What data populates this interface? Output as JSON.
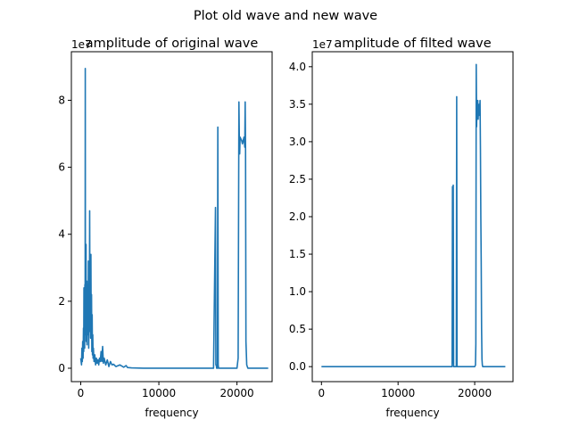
{
  "figure": {
    "suptitle": "Plot old wave and new wave"
  },
  "chart_data": [
    {
      "type": "line",
      "title": "amplitude of original wave",
      "xlabel": "frequency",
      "ylabel": "",
      "xlim": [
        -1200,
        24500
      ],
      "ylim": [
        -0.4,
        9.45
      ],
      "y_offset_text": "1e7",
      "xticks": [
        0,
        10000,
        20000
      ],
      "xtick_labels": [
        "0",
        "10000",
        "20000"
      ],
      "yticks": [
        0,
        2,
        4,
        6,
        8
      ],
      "ytick_labels": [
        "0",
        "2",
        "4",
        "6",
        "8"
      ],
      "grid": false,
      "legend": "none",
      "color": "#1f77b4",
      "series": [
        {
          "x": [
            0,
            100,
            150,
            200,
            250,
            300,
            350,
            380,
            410,
            440,
            470,
            500,
            530,
            560,
            580,
            600,
            620,
            650,
            680,
            700,
            720,
            750,
            780,
            800,
            830,
            860,
            900,
            940,
            980,
            1020,
            1060,
            1100,
            1140,
            1180,
            1220,
            1260,
            1300,
            1340,
            1380,
            1420,
            1460,
            1500,
            1540,
            1580,
            1620,
            1700,
            1800,
            1900,
            2000,
            2100,
            2200,
            2300,
            2400,
            2500,
            2600,
            2700,
            2800,
            2900,
            3000,
            3200,
            3400,
            3600,
            3800,
            4000,
            4200,
            4500,
            5000,
            5500,
            5800,
            6000,
            6500,
            8000,
            10000,
            12000,
            14000,
            16000,
            17000,
            17250,
            17300,
            17350,
            17400,
            17500,
            17550,
            17600,
            17650,
            17700,
            17800,
            18000,
            19000,
            20000,
            20150,
            20250,
            20300,
            20350,
            20400,
            20500,
            20600,
            20700,
            20800,
            20900,
            21000,
            21050,
            21100,
            21150,
            21250,
            21400,
            22000,
            24000
          ],
          "values": [
            0.3,
            0.1,
            0.6,
            0.2,
            0.8,
            0.3,
            1.2,
            0.5,
            2.4,
            1.0,
            2.0,
            0.6,
            2.5,
            1.1,
            8.95,
            1.0,
            3.0,
            1.5,
            3.7,
            0.8,
            2.2,
            1.4,
            2.6,
            0.7,
            1.8,
            1.0,
            2.5,
            1.2,
            3.2,
            0.6,
            2.0,
            1.1,
            4.7,
            1.3,
            3.0,
            0.9,
            3.4,
            1.0,
            2.2,
            0.5,
            1.6,
            0.4,
            1.0,
            0.3,
            0.6,
            0.2,
            0.4,
            0.1,
            0.3,
            0.15,
            0.25,
            0.1,
            0.3,
            0.2,
            0.5,
            0.2,
            0.65,
            0.15,
            0.3,
            0.1,
            0.25,
            0.05,
            0.2,
            0.1,
            0.12,
            0.05,
            0.1,
            0.03,
            0.08,
            0.02,
            0.01,
            0.0,
            0.0,
            0.0,
            0.0,
            0.0,
            0.0,
            4.8,
            0.1,
            0.1,
            0.0,
            0.0,
            7.2,
            0.1,
            0.0,
            0.0,
            0.0,
            0.0,
            0.0,
            0.0,
            0.3,
            7.95,
            6.9,
            6.4,
            6.9,
            6.85,
            6.8,
            6.7,
            6.8,
            6.9,
            6.6,
            7.95,
            6.5,
            0.8,
            0.1,
            0.0,
            0.0,
            0.0
          ]
        }
      ]
    },
    {
      "type": "line",
      "title": "amplitude of filted wave",
      "xlabel": "frequency",
      "ylabel": "",
      "xlim": [
        -1200,
        25000
      ],
      "ylim": [
        -0.2,
        4.2
      ],
      "y_offset_text": "1e7",
      "xticks": [
        0,
        10000,
        20000
      ],
      "xtick_labels": [
        "0",
        "10000",
        "20000"
      ],
      "yticks": [
        0.0,
        0.5,
        1.0,
        1.5,
        2.0,
        2.5,
        3.0,
        3.5,
        4.0
      ],
      "ytick_labels": [
        "0.0",
        "0.5",
        "1.0",
        "1.5",
        "2.0",
        "2.5",
        "3.0",
        "3.5",
        "4.0"
      ],
      "grid": false,
      "legend": "none",
      "color": "#1f77b4",
      "series": [
        {
          "x": [
            0,
            5000,
            10000,
            15000,
            17050,
            17100,
            17150,
            17200,
            17250,
            17300,
            17600,
            17650,
            17700,
            17750,
            17800,
            18500,
            20000,
            20100,
            20150,
            20200,
            20250,
            20300,
            20350,
            20400,
            20450,
            20500,
            20550,
            20600,
            20650,
            20700,
            20750,
            20800,
            20850,
            20900,
            20950,
            21000,
            21050,
            21100,
            21200,
            22000,
            24000
          ],
          "values": [
            0.0,
            0.0,
            0.0,
            0.0,
            0.0,
            2.4,
            0.05,
            2.42,
            0.0,
            0.0,
            0.0,
            3.6,
            0.0,
            0.0,
            0.0,
            0.0,
            0.0,
            0.02,
            0.3,
            4.03,
            3.2,
            3.5,
            3.35,
            3.55,
            3.3,
            3.45,
            3.35,
            3.5,
            3.4,
            3.55,
            2.9,
            2.0,
            1.4,
            0.5,
            0.1,
            0.02,
            0.0,
            0.0,
            0.0,
            0.0,
            0.0
          ]
        }
      ]
    }
  ]
}
